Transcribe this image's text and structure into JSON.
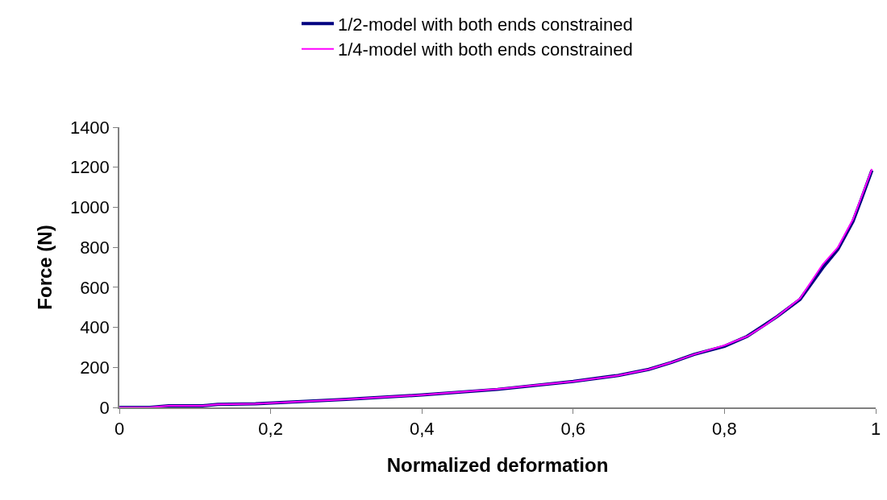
{
  "chart_data": {
    "type": "line",
    "xlabel": "Normalized deformation",
    "ylabel": "Force (N)",
    "xlim": [
      0,
      1
    ],
    "xticks": [
      0,
      {
        "value": 0.2,
        "label": "0,2"
      },
      {
        "value": 0.4,
        "label": "0,4"
      },
      {
        "value": 0.6,
        "label": "0,6"
      },
      {
        "value": 0.8,
        "label": "0,8"
      },
      1
    ],
    "ylim": [
      0,
      1400
    ],
    "yticks": [
      0,
      200,
      400,
      600,
      800,
      1000,
      1200,
      1400
    ],
    "legend": "top",
    "marker": "none",
    "line_style": "solid",
    "series": [
      {
        "name": "1/2-model with both ends constrained",
        "color": "#000080",
        "x": [
          0,
          0.04,
          0.065,
          0.11,
          0.13,
          0.18,
          0.3,
          0.4,
          0.5,
          0.6,
          0.66,
          0.7,
          0.73,
          0.76,
          0.8,
          0.83,
          0.85,
          0.87,
          0.9,
          0.93,
          0.95,
          0.97,
          0.98,
          0.995
        ],
        "values": [
          0,
          0,
          8,
          8,
          15,
          18,
          40,
          62,
          90,
          130,
          160,
          190,
          225,
          265,
          305,
          355,
          405,
          455,
          540,
          698,
          790,
          930,
          1030,
          1185
        ]
      },
      {
        "name": "1/4-model with both ends constrained",
        "color": "#ff00ff",
        "x": [
          0,
          0.04,
          0.065,
          0.11,
          0.13,
          0.18,
          0.3,
          0.4,
          0.5,
          0.6,
          0.66,
          0.7,
          0.73,
          0.76,
          0.8,
          0.83,
          0.853,
          0.87,
          0.9,
          0.93,
          0.95,
          0.97,
          0.98,
          0.995
        ],
        "values": [
          0,
          0,
          8,
          8,
          15,
          18,
          40,
          62,
          92,
          130,
          160,
          190,
          225,
          265,
          310,
          355,
          409,
          455,
          545,
          715,
          800,
          940,
          1040,
          1191
        ]
      }
    ]
  }
}
